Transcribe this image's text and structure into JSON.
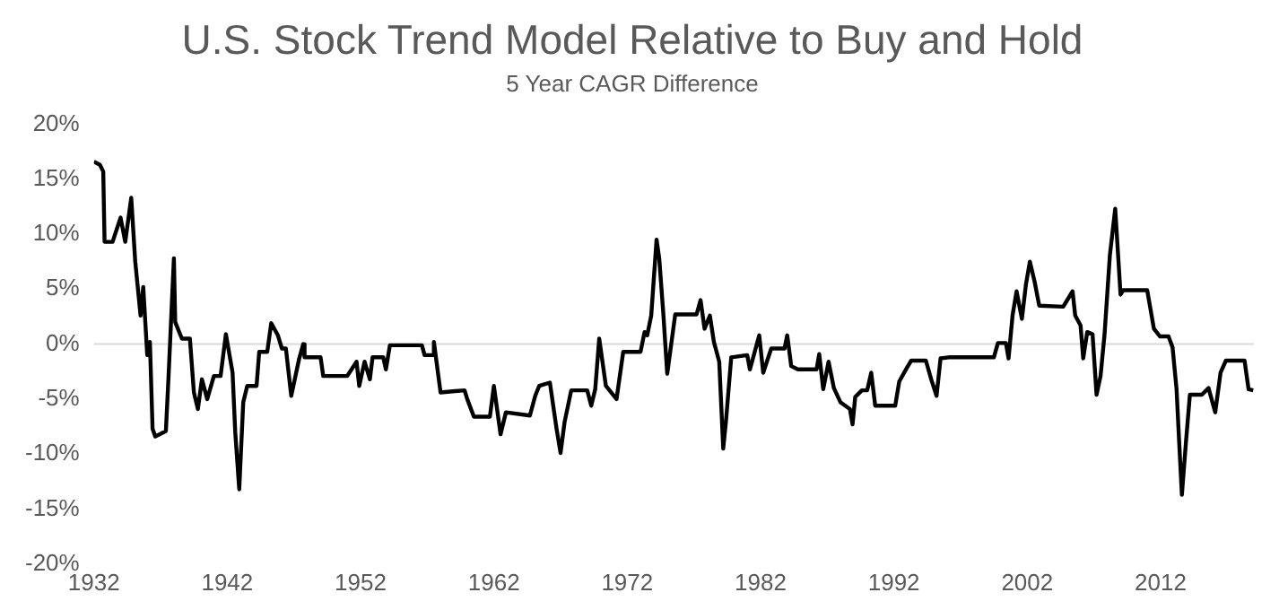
{
  "chart_data": {
    "type": "line",
    "title": "U.S. Stock Trend Model Relative to Buy and Hold",
    "subtitle": "5 Year CAGR Difference",
    "x": [
      1932.0,
      1932.45,
      1932.7,
      1932.8,
      1933.4,
      1934.0,
      1934.35,
      1934.8,
      1935.1,
      1935.5,
      1935.7,
      1936.0,
      1936.2,
      1936.4,
      1936.6,
      1937.4,
      1937.6,
      1938.0,
      1938.1,
      1938.6,
      1939.2,
      1939.5,
      1939.8,
      1940.1,
      1940.5,
      1941.0,
      1941.5,
      1941.9,
      1942.4,
      1942.6,
      1942.9,
      1943.2,
      1943.5,
      1944.2,
      1944.4,
      1945.0,
      1945.3,
      1945.8,
      1946.1,
      1946.4,
      1946.8,
      1947.4,
      1947.7,
      1947.8,
      1949.0,
      1949.2,
      1951.0,
      1951.7,
      1951.9,
      1952.3,
      1952.7,
      1952.9,
      1953.7,
      1953.9,
      1954.2,
      1956.6,
      1956.8,
      1957.4,
      1957.5,
      1958.0,
      1959.8,
      1960.0,
      1960.5,
      1961.7,
      1962.0,
      1962.5,
      1962.9,
      1964.7,
      1965.1,
      1965.4,
      1966.2,
      1966.7,
      1967.0,
      1967.3,
      1967.8,
      1969.0,
      1969.3,
      1969.6,
      1969.9,
      1970.4,
      1971.2,
      1971.7,
      1973.0,
      1973.3,
      1973.5,
      1973.8,
      1974.2,
      1974.4,
      1974.7,
      1975.0,
      1975.6,
      1977.2,
      1977.5,
      1977.8,
      1978.2,
      1978.5,
      1978.9,
      1979.2,
      1979.4,
      1979.8,
      1981.0,
      1981.2,
      1981.9,
      1982.2,
      1982.8,
      1983.8,
      1984.0,
      1984.3,
      1984.8,
      1986.2,
      1986.4,
      1986.7,
      1987.1,
      1987.5,
      1988.0,
      1988.7,
      1988.9,
      1989.1,
      1989.6,
      1990.0,
      1990.3,
      1990.6,
      1992.1,
      1992.4,
      1993.0,
      1993.3,
      1994.4,
      1994.8,
      1995.2,
      1995.5,
      1996.1,
      1999.5,
      1999.8,
      2000.4,
      2000.6,
      2000.9,
      2001.2,
      2001.6,
      2001.9,
      2002.2,
      2002.55,
      2002.9,
      2004.7,
      2005.4,
      2005.6,
      2006.0,
      2006.2,
      2006.5,
      2006.9,
      2007.2,
      2007.5,
      2007.8,
      2008.2,
      2008.6,
      2009.0,
      2009.2,
      2011.0,
      2011.5,
      2011.95,
      2012.6,
      2012.9,
      2013.2,
      2013.4,
      2013.6,
      2013.9,
      2014.2,
      2015.1,
      2015.6,
      2016.1,
      2016.5,
      2016.9,
      2018.3,
      2018.6,
      2018.95
    ],
    "series": [
      {
        "color": "#000000",
        "values": [
          16.6,
          16.3,
          15.7,
          9.3,
          9.3,
          11.5,
          9.3,
          13.3,
          7.5,
          2.6,
          5.2,
          -1.0,
          0.2,
          -7.7,
          -8.4,
          -7.9,
          -2.9,
          7.8,
          2.0,
          0.5,
          0.5,
          -4.4,
          -5.9,
          -3.2,
          -5.0,
          -2.9,
          -2.9,
          0.9,
          -2.6,
          -8.0,
          -13.2,
          -5.3,
          -3.8,
          -3.8,
          -0.7,
          -0.7,
          1.9,
          0.8,
          -0.4,
          -0.4,
          -4.7,
          -1.3,
          0.0,
          -1.2,
          -1.2,
          -2.9,
          -2.9,
          -1.6,
          -3.8,
          -1.6,
          -3.2,
          -1.2,
          -1.2,
          -2.3,
          -0.1,
          -0.1,
          -1.0,
          -1.0,
          0.2,
          -4.4,
          -4.2,
          -5.0,
          -6.6,
          -6.6,
          -3.8,
          -8.2,
          -6.2,
          -6.5,
          -4.7,
          -3.8,
          -3.5,
          -7.7,
          -9.9,
          -7.1,
          -4.2,
          -4.2,
          -5.6,
          -4.1,
          0.5,
          -3.8,
          -5.0,
          -0.7,
          -0.7,
          1.1,
          0.8,
          2.6,
          9.5,
          7.8,
          2.9,
          -2.7,
          2.7,
          2.7,
          4.0,
          1.4,
          2.6,
          0.2,
          -1.6,
          -9.5,
          -7.1,
          -1.2,
          -1.0,
          -2.3,
          0.8,
          -2.6,
          -0.4,
          -0.4,
          0.8,
          -2.0,
          -2.3,
          -2.3,
          -0.9,
          -4.1,
          -1.6,
          -4.0,
          -5.3,
          -5.9,
          -7.3,
          -4.8,
          -4.2,
          -4.2,
          -2.6,
          -5.6,
          -5.6,
          -3.4,
          -2.1,
          -1.5,
          -1.5,
          -3.2,
          -4.7,
          -1.3,
          -1.2,
          -1.2,
          0.1,
          0.1,
          -1.3,
          2.6,
          4.8,
          2.3,
          5.4,
          7.5,
          5.7,
          3.5,
          3.4,
          4.8,
          2.6,
          1.7,
          -1.3,
          1.1,
          0.9,
          -4.6,
          -2.9,
          0.9,
          8.1,
          12.3,
          4.5,
          4.9,
          4.9,
          1.4,
          0.7,
          0.7,
          -0.3,
          -4.1,
          -9.0,
          -13.7,
          -9.0,
          -4.6,
          -4.6,
          -4.0,
          -6.2,
          -2.6,
          -1.5,
          -1.5,
          -4.1,
          -4.2
        ]
      }
    ],
    "xlim": [
      1932,
      2019
    ],
    "xticks": [
      1932,
      1942,
      1952,
      1962,
      1972,
      1982,
      1992,
      2002,
      2012
    ],
    "ylim": [
      -20,
      20
    ],
    "yticks": [
      {
        "value": -20,
        "label": "-20%"
      },
      {
        "value": -15,
        "label": "-15%"
      },
      {
        "value": -10,
        "label": "-10%"
      },
      {
        "value": -5,
        "label": "-5%"
      },
      {
        "value": 0,
        "label": "0%"
      },
      {
        "value": 5,
        "label": "5%"
      },
      {
        "value": 10,
        "label": "10%"
      },
      {
        "value": 15,
        "label": "15%"
      },
      {
        "value": 20,
        "label": "20%"
      }
    ],
    "ref_lines": [
      {
        "axis": "y",
        "value": 0,
        "color": "#d9d9d9"
      }
    ],
    "grid": false,
    "legend": false,
    "marker": "none",
    "line_style": "solid"
  }
}
